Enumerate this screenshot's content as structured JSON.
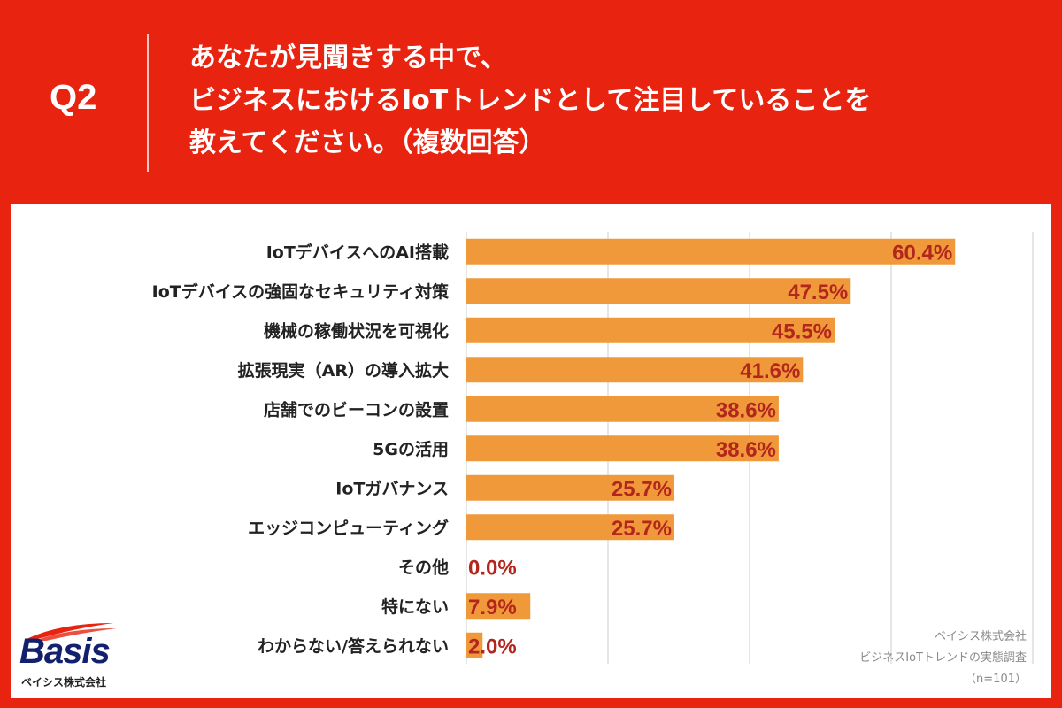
{
  "header": {
    "q_label": "Q2",
    "question_lines": [
      "あなたが見聞きする中で、",
      "ビジネスにおけるIoTトレンドとして注目していることを",
      "教えてください。（複数回答）"
    ]
  },
  "chart_data": {
    "type": "bar",
    "orientation": "horizontal",
    "categories": [
      "IoTデバイスへのAI搭載",
      "IoTデバイスの強固なセキュリティ対策",
      "機械の稼働状況を可視化",
      "拡張現実（AR）の導入拡大",
      "店舗でのビーコンの設置",
      "5Gの活用",
      "IoTガバナンス",
      "エッジコンピューティング",
      "その他",
      "特にない",
      "わからない/答えられない"
    ],
    "values": [
      60.4,
      47.5,
      45.5,
      41.6,
      38.6,
      38.6,
      25.7,
      25.7,
      0.0,
      7.9,
      2.0
    ],
    "value_labels": [
      "60.4%",
      "47.5%",
      "45.5%",
      "41.6%",
      "38.6%",
      "38.6%",
      "25.7%",
      "25.7%",
      "0.0%",
      "7.9%",
      "2.0%"
    ],
    "xlim": [
      0,
      70
    ],
    "gridlines": [
      0,
      17.5,
      35,
      52.5,
      70
    ],
    "bar_color": "#f0993a",
    "label_color": "#b3261e"
  },
  "source": {
    "line1": "ベイシス株式会社",
    "line2": "ビジネスIoTトレンドの実態調査",
    "line3": "（n=101）"
  },
  "logo": {
    "name": "Basis",
    "sub": "ベイシス株式会社"
  }
}
